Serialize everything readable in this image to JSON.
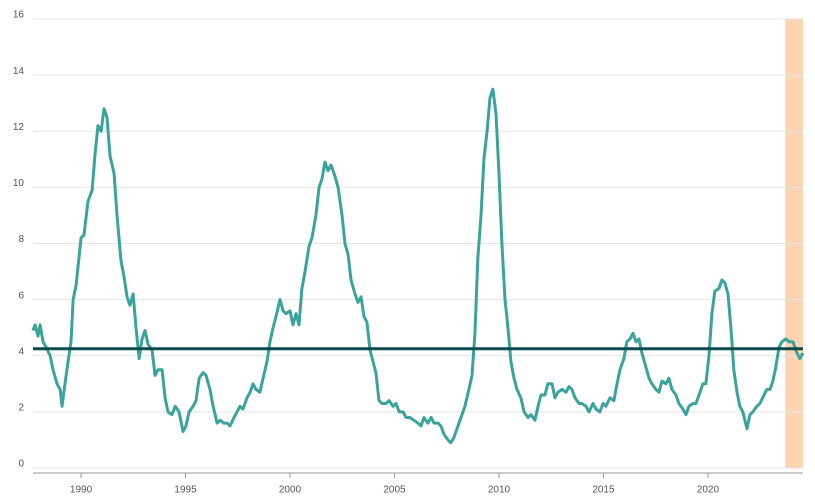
{
  "chart_data": {
    "type": "line",
    "x": [
      1987.7,
      1987.8,
      1987.94,
      1988.04,
      1988.18,
      1988.33,
      1988.52,
      1988.66,
      1988.85,
      1989.0,
      1989.09,
      1989.23,
      1989.38,
      1989.52,
      1989.62,
      1989.76,
      1989.9,
      1990.0,
      1990.14,
      1990.33,
      1990.53,
      1990.67,
      1990.81,
      1990.96,
      1991.1,
      1991.24,
      1991.39,
      1991.58,
      1991.72,
      1991.91,
      1992.06,
      1992.2,
      1992.34,
      1992.49,
      1992.63,
      1992.78,
      1992.92,
      1993.06,
      1993.21,
      1993.4,
      1993.54,
      1993.68,
      1993.88,
      1994.02,
      1994.16,
      1994.35,
      1994.5,
      1994.69,
      1994.88,
      1995.02,
      1995.17,
      1995.36,
      1995.5,
      1995.65,
      1995.84,
      1995.98,
      1996.17,
      1996.32,
      1996.51,
      1996.65,
      1996.84,
      1996.99,
      1997.13,
      1997.32,
      1997.46,
      1997.61,
      1997.75,
      1997.94,
      1998.09,
      1998.23,
      1998.37,
      1998.56,
      1998.71,
      1998.9,
      1999.04,
      1999.19,
      1999.33,
      1999.52,
      1999.67,
      1999.81,
      2000.0,
      2000.14,
      2000.29,
      2000.43,
      2000.57,
      2000.72,
      2000.91,
      2001.05,
      2001.24,
      2001.39,
      2001.53,
      2001.67,
      2001.82,
      2001.96,
      2002.15,
      2002.3,
      2002.49,
      2002.63,
      2002.78,
      2002.92,
      2003.11,
      2003.25,
      2003.4,
      2003.54,
      2003.68,
      2003.83,
      2003.97,
      2004.11,
      2004.26,
      2004.4,
      2004.59,
      2004.74,
      2004.93,
      2005.07,
      2005.22,
      2005.41,
      2005.55,
      2005.74,
      2005.93,
      2006.12,
      2006.27,
      2006.41,
      2006.6,
      2006.75,
      2006.89,
      2007.08,
      2007.22,
      2007.37,
      2007.56,
      2007.7,
      2007.85,
      2008.04,
      2008.23,
      2008.37,
      2008.56,
      2008.71,
      2008.85,
      2008.99,
      2009.14,
      2009.28,
      2009.43,
      2009.57,
      2009.71,
      2009.86,
      2010.0,
      2010.14,
      2010.29,
      2010.43,
      2010.57,
      2010.72,
      2010.86,
      2011.05,
      2011.2,
      2011.39,
      2011.53,
      2011.72,
      2011.87,
      2012.01,
      2012.2,
      2012.34,
      2012.54,
      2012.68,
      2012.82,
      2013.01,
      2013.21,
      2013.35,
      2013.49,
      2013.64,
      2013.83,
      2013.97,
      2014.16,
      2014.31,
      2014.5,
      2014.64,
      2014.83,
      2014.98,
      2015.12,
      2015.31,
      2015.5,
      2015.65,
      2015.79,
      2015.98,
      2016.12,
      2016.27,
      2016.41,
      2016.56,
      2016.7,
      2016.84,
      2017.03,
      2017.18,
      2017.32,
      2017.51,
      2017.66,
      2017.8,
      2017.99,
      2018.13,
      2018.28,
      2018.47,
      2018.61,
      2018.8,
      2018.95,
      2019.09,
      2019.28,
      2019.43,
      2019.62,
      2019.76,
      2019.9,
      2020.05,
      2020.19,
      2020.33,
      2020.53,
      2020.67,
      2020.81,
      2020.96,
      2021.1,
      2021.24,
      2021.39,
      2021.53,
      2021.67,
      2021.87,
      2022.01,
      2022.15,
      2022.34,
      2022.49,
      2022.68,
      2022.82,
      2022.97,
      2023.11,
      2023.25,
      2023.4,
      2023.54,
      2023.73,
      2023.88,
      2024.07,
      2024.26,
      2024.4,
      2024.55
    ],
    "series": [
      {
        "color": "#3ba39d",
        "values": [
          4.9,
          5.1,
          4.7,
          5.1,
          4.5,
          4.3,
          4.0,
          3.5,
          3.0,
          2.8,
          2.2,
          3.0,
          3.8,
          4.5,
          6.0,
          6.5,
          7.5,
          8.2,
          8.3,
          9.5,
          9.9,
          11.2,
          12.2,
          12.0,
          12.8,
          12.5,
          11.1,
          10.5,
          9.0,
          7.4,
          6.8,
          6.1,
          5.8,
          6.2,
          5.0,
          3.9,
          4.6,
          4.9,
          4.4,
          4.2,
          3.3,
          3.5,
          3.5,
          2.5,
          2.0,
          1.9,
          2.2,
          2.0,
          1.3,
          1.5,
          2.0,
          2.2,
          2.4,
          3.2,
          3.4,
          3.3,
          2.8,
          2.2,
          1.6,
          1.7,
          1.6,
          1.6,
          1.5,
          1.8,
          2.0,
          2.2,
          2.1,
          2.5,
          2.7,
          3.0,
          2.8,
          2.7,
          3.2,
          3.8,
          4.5,
          5.0,
          5.4,
          6.0,
          5.6,
          5.5,
          5.6,
          5.1,
          5.5,
          5.1,
          6.4,
          7.0,
          7.9,
          8.2,
          9.0,
          10.0,
          10.3,
          10.9,
          10.6,
          10.8,
          10.4,
          10.0,
          9.0,
          8.0,
          7.6,
          6.7,
          6.2,
          5.9,
          6.1,
          5.4,
          5.2,
          4.2,
          3.8,
          3.4,
          2.4,
          2.3,
          2.3,
          2.4,
          2.2,
          2.3,
          2.0,
          2.0,
          1.8,
          1.8,
          1.7,
          1.6,
          1.5,
          1.8,
          1.6,
          1.8,
          1.6,
          1.6,
          1.5,
          1.2,
          1.0,
          0.9,
          1.1,
          1.5,
          1.9,
          2.2,
          2.8,
          3.3,
          4.8,
          7.5,
          9.0,
          11.0,
          12.0,
          13.2,
          13.5,
          12.6,
          10.5,
          8.0,
          6.0,
          5.0,
          3.8,
          3.2,
          2.8,
          2.5,
          2.0,
          1.8,
          1.9,
          1.7,
          2.2,
          2.6,
          2.6,
          3.0,
          3.0,
          2.5,
          2.7,
          2.8,
          2.7,
          2.9,
          2.8,
          2.5,
          2.3,
          2.3,
          2.2,
          2.0,
          2.3,
          2.1,
          2.0,
          2.3,
          2.2,
          2.5,
          2.4,
          3.0,
          3.5,
          3.9,
          4.5,
          4.6,
          4.8,
          4.5,
          4.6,
          4.1,
          3.6,
          3.2,
          3.0,
          2.8,
          2.7,
          3.1,
          3.0,
          3.2,
          2.8,
          2.6,
          2.3,
          2.1,
          1.9,
          2.2,
          2.3,
          2.3,
          2.7,
          3.0,
          3.0,
          4.0,
          5.5,
          6.3,
          6.4,
          6.7,
          6.6,
          6.2,
          5.0,
          3.5,
          2.7,
          2.2,
          2.0,
          1.4,
          1.9,
          2.0,
          2.2,
          2.3,
          2.6,
          2.8,
          2.8,
          3.1,
          3.6,
          4.3,
          4.5,
          4.6,
          4.5,
          4.5,
          4.1,
          3.9,
          4.1
        ]
      }
    ],
    "reference_line": {
      "value": 4.25,
      "color": "#0c4b4d"
    },
    "shade": {
      "x": [
        2023.7,
        2024.55
      ],
      "color": "#fdd5b1"
    },
    "xlim": [
      1987.7,
      2024.55
    ],
    "xticks": [
      1990,
      1995,
      2000,
      2005,
      2010,
      2015,
      2020
    ],
    "ylim": [
      0,
      16
    ],
    "yticks": [
      0,
      2,
      4,
      6,
      8,
      10,
      12,
      14,
      16
    ],
    "grid": true
  }
}
